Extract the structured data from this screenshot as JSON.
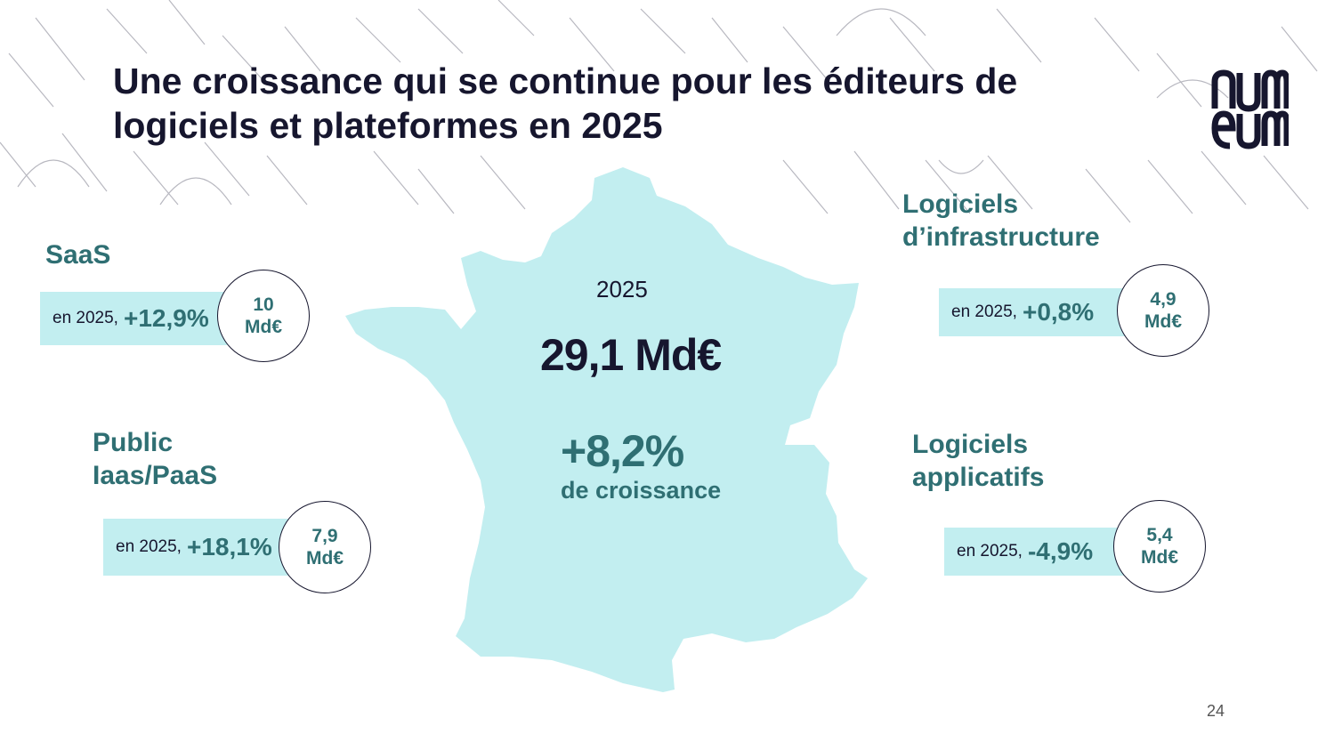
{
  "title": {
    "line1": "Une croissance qui se continue pour les éditeurs de",
    "line2": "logiciels et plateformes en 2025"
  },
  "logo": {
    "name": "numeum"
  },
  "center": {
    "year": "2025",
    "total": "29,1 Md€",
    "growth": "+8,2%",
    "growth_label": "de croissance"
  },
  "segments": {
    "saas": {
      "title": "SaaS",
      "prefix": "en 2025,",
      "growth": "+12,9%",
      "amount_line1": "10",
      "amount_line2": "Md€"
    },
    "iaas": {
      "title_line1": "Public",
      "title_line2": "Iaas/PaaS",
      "prefix": "en 2025,",
      "growth": "+18,1%",
      "amount_line1": "7,9",
      "amount_line2": "Md€"
    },
    "infra": {
      "title_line1": "Logiciels",
      "title_line2": "d’infrastructure",
      "prefix": "en 2025,",
      "growth": "+0,8%",
      "amount_line1": "4,9",
      "amount_line2": "Md€"
    },
    "apps": {
      "title_line1": "Logiciels",
      "title_line2": "applicatifs",
      "prefix": "en 2025,",
      "growth": "-4,9%",
      "amount_line1": "5,4",
      "amount_line2": "Md€"
    }
  },
  "page_number": "24",
  "colors": {
    "accent": "#2f6f73",
    "band": "#c2eef0",
    "map": "#c2eef0",
    "title": "#16162e"
  }
}
